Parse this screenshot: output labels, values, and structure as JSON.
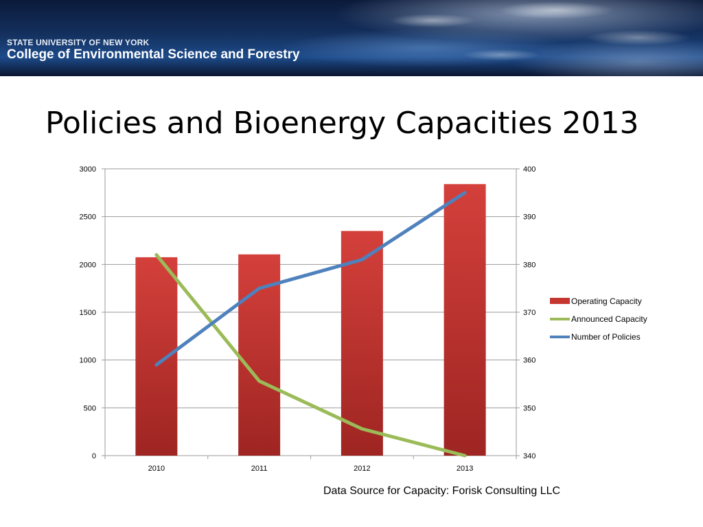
{
  "banner": {
    "line1": "STATE UNIVERSITY OF NEW YORK",
    "line2": "College of Environmental Science and Forestry"
  },
  "slide": {
    "title": "Policies and Bioenergy Capacities 2013",
    "source": "Data Source for Capacity: Forisk Consulting LLC"
  },
  "colors": {
    "operating": "#c63631",
    "operating_dark": "#a02623",
    "announced": "#9bbb59",
    "policies": "#4f81bd",
    "grid": "#9a9a9a"
  },
  "chart_data": {
    "type": "bar",
    "categories": [
      "2010",
      "2011",
      "2012",
      "2013"
    ],
    "series": [
      {
        "name": "Operating Capacity",
        "type": "bar",
        "axis": "left",
        "values": [
          2075,
          2105,
          2350,
          2840
        ]
      },
      {
        "name": "Announced Capacity",
        "type": "line",
        "axis": "left",
        "values": [
          2100,
          780,
          280,
          0
        ]
      },
      {
        "name": "Number of Policies",
        "type": "line",
        "axis": "right",
        "values": [
          359,
          375,
          381,
          395
        ]
      }
    ],
    "left_axis": {
      "ylim": [
        0,
        3000
      ],
      "ticks": [
        "0",
        "500",
        "1000",
        "1500",
        "2000",
        "2500",
        "3000"
      ]
    },
    "right_axis": {
      "ylim": [
        340,
        400
      ],
      "ticks": [
        "340",
        "350",
        "360",
        "370",
        "380",
        "390",
        "400"
      ]
    },
    "grid": true,
    "legend": "right"
  }
}
